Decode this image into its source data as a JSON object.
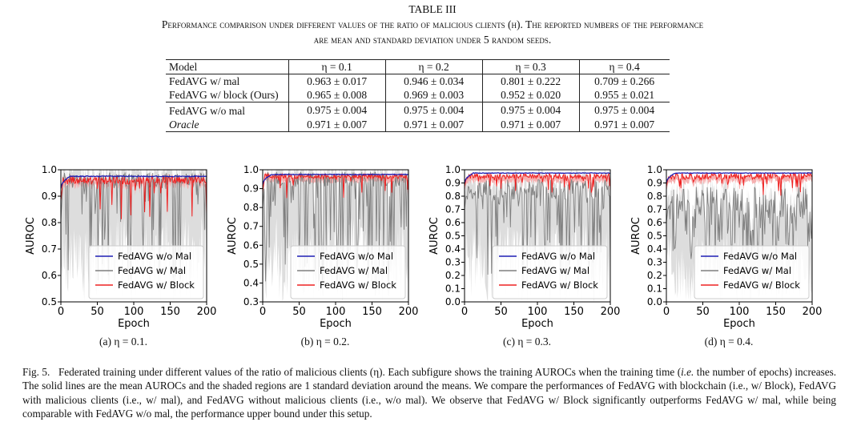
{
  "table": {
    "title": "TABLE III",
    "caption_line1": "Performance comparison under different values of the ratio of malicious clients (η). The reported numbers of the performance",
    "caption_line2": "are mean and standard deviation under 5 random seeds.",
    "header": [
      "Model",
      "η = 0.1",
      "η = 0.2",
      "η = 0.3",
      "η = 0.4"
    ],
    "rows": [
      {
        "model": "FedAVG w/ mal",
        "values": [
          "0.963 ± 0.017",
          "0.946 ± 0.034",
          "0.801 ± 0.222",
          "0.709 ± 0.266"
        ]
      },
      {
        "model": "FedAVG w/ block (Ours)",
        "values": [
          "0.965 ± 0.008",
          "0.969 ± 0.003",
          "0.952 ± 0.020",
          "0.955 ± 0.021"
        ]
      },
      {
        "model": "FedAVG w/o mal",
        "values": [
          "0.975 ± 0.004",
          "0.975 ± 0.004",
          "0.975 ± 0.004",
          "0.975 ± 0.004"
        ]
      },
      {
        "model": "Oracle",
        "values": [
          "0.971 ± 0.007",
          "0.971 ± 0.007",
          "0.971 ± 0.007",
          "0.971 ± 0.007"
        ]
      }
    ]
  },
  "chart_data": [
    {
      "type": "line",
      "subcaption": "(a) η = 0.1.",
      "xlabel": "Epoch",
      "ylabel": "AUROC",
      "xlim": [
        0,
        200
      ],
      "ylim": [
        0.5,
        1.0
      ],
      "xticks": [
        0,
        50,
        100,
        150,
        200
      ],
      "yticks": [
        0.5,
        0.6,
        0.7,
        0.8,
        0.9,
        1.0
      ],
      "ytick_labels": [
        "0.5",
        "0.6",
        "0.7",
        "0.8",
        "0.9",
        "1.0"
      ],
      "legend": "bottom-right",
      "series": [
        {
          "name": "FedAVG w/o Mal",
          "color": "#1f1fb4",
          "start": 0.93,
          "plateau": 0.975,
          "noise": 0.004
        },
        {
          "name": "FedAVG w/ Mal",
          "color": "#7f7f7f",
          "plateau": 0.96,
          "noise": 0.03,
          "spike_prob": 0.2,
          "spike_min": 0.55
        },
        {
          "name": "FedAVG w/ Block",
          "color": "#ee2222",
          "plateau": 0.96,
          "noise": 0.015,
          "spike_prob": 0.1,
          "spike_min": 0.8
        }
      ]
    },
    {
      "type": "line",
      "subcaption": "(b) η = 0.2.",
      "xlabel": "Epoch",
      "ylabel": "AUROC",
      "xlim": [
        0,
        200
      ],
      "ylim": [
        0.3,
        1.0
      ],
      "xticks": [
        0,
        50,
        100,
        150,
        200
      ],
      "yticks": [
        0.3,
        0.4,
        0.5,
        0.6,
        0.7,
        0.8,
        0.9,
        1.0
      ],
      "ytick_labels": [
        "0.3",
        "0.4",
        "0.5",
        "0.6",
        "0.7",
        "0.8",
        "0.9",
        "1.0"
      ],
      "legend": "bottom-right",
      "series": [
        {
          "name": "FedAVG w/o Mal",
          "color": "#1f1fb4",
          "start": 0.92,
          "plateau": 0.975,
          "noise": 0.004
        },
        {
          "name": "FedAVG w/ Mal",
          "color": "#7f7f7f",
          "plateau": 0.95,
          "noise": 0.04,
          "spike_prob": 0.3,
          "spike_min": 0.4
        },
        {
          "name": "FedAVG w/ Block",
          "color": "#ee2222",
          "plateau": 0.965,
          "noise": 0.012,
          "spike_prob": 0.08,
          "spike_min": 0.85
        }
      ]
    },
    {
      "type": "line",
      "subcaption": "(c) η = 0.3.",
      "xlabel": "Epoch",
      "ylabel": "AUROC",
      "xlim": [
        0,
        200
      ],
      "ylim": [
        0.0,
        1.0
      ],
      "xticks": [
        0,
        50,
        100,
        150,
        200
      ],
      "yticks": [
        0.0,
        0.1,
        0.2,
        0.3,
        0.4,
        0.5,
        0.6,
        0.7,
        0.8,
        0.9,
        1.0
      ],
      "ytick_labels": [
        "0.0",
        "0.1",
        "0.2",
        "0.3",
        "0.4",
        "0.5",
        "0.6",
        "0.7",
        "0.8",
        "0.9",
        "1.0"
      ],
      "legend": "bottom-right",
      "series": [
        {
          "name": "FedAVG w/o Mal",
          "color": "#1f1fb4",
          "start": 0.9,
          "plateau": 0.975,
          "noise": 0.004
        },
        {
          "name": "FedAVG w/ Mal",
          "color": "#7f7f7f",
          "plateau": 0.85,
          "noise": 0.08,
          "spike_prob": 0.35,
          "spike_min": 0.2
        },
        {
          "name": "FedAVG w/ Block",
          "color": "#ee2222",
          "plateau": 0.95,
          "noise": 0.02,
          "spike_prob": 0.1,
          "spike_min": 0.82
        }
      ]
    },
    {
      "type": "line",
      "subcaption": "(d) η = 0.4.",
      "xlabel": "Epoch",
      "ylabel": "AUROC",
      "xlim": [
        0,
        200
      ],
      "ylim": [
        0.0,
        1.0
      ],
      "xticks": [
        0,
        50,
        100,
        150,
        200
      ],
      "yticks": [
        0.0,
        0.1,
        0.2,
        0.3,
        0.4,
        0.5,
        0.6,
        0.7,
        0.8,
        0.9,
        1.0
      ],
      "ytick_labels": [
        "0.0",
        "0.1",
        "0.2",
        "0.3",
        "0.4",
        "0.5",
        "0.6",
        "0.7",
        "0.8",
        "0.9",
        "1.0"
      ],
      "legend": "bottom-right",
      "series": [
        {
          "name": "FedAVG w/o Mal",
          "color": "#1f1fb4",
          "start": 0.9,
          "plateau": 0.975,
          "noise": 0.004
        },
        {
          "name": "FedAVG w/ Mal",
          "color": "#7f7f7f",
          "plateau": 0.75,
          "noise": 0.12,
          "spike_prob": 0.4,
          "spike_min": 0.3
        },
        {
          "name": "FedAVG w/ Block",
          "color": "#ee2222",
          "plateau": 0.95,
          "noise": 0.025,
          "spike_prob": 0.12,
          "spike_min": 0.8
        }
      ]
    }
  ],
  "figure": {
    "caption_label": "Fig. 5.",
    "caption_text_1": "Federated training under different values of the ratio of malicious clients (η). Each subfigure shows the training AUROCs when the training time (",
    "caption_ie": "i.e.",
    "caption_text_2": " the number of epochs) increases. The solid lines are the mean AUROCs and the shaded regions are 1 standard deviation around the means. We compare the performances of FedAVG with blockchain (i.e., w/ Block), FedAVG with malicious clients (i.e., w/ mal), and FedAVG without malicious clients (i.e., w/o mal). We observe that FedAVG w/ Block significantly outperforms FedAVG w/ mal, while being comparable with FedAVG w/o mal, the performance upper bound under this setup."
  }
}
